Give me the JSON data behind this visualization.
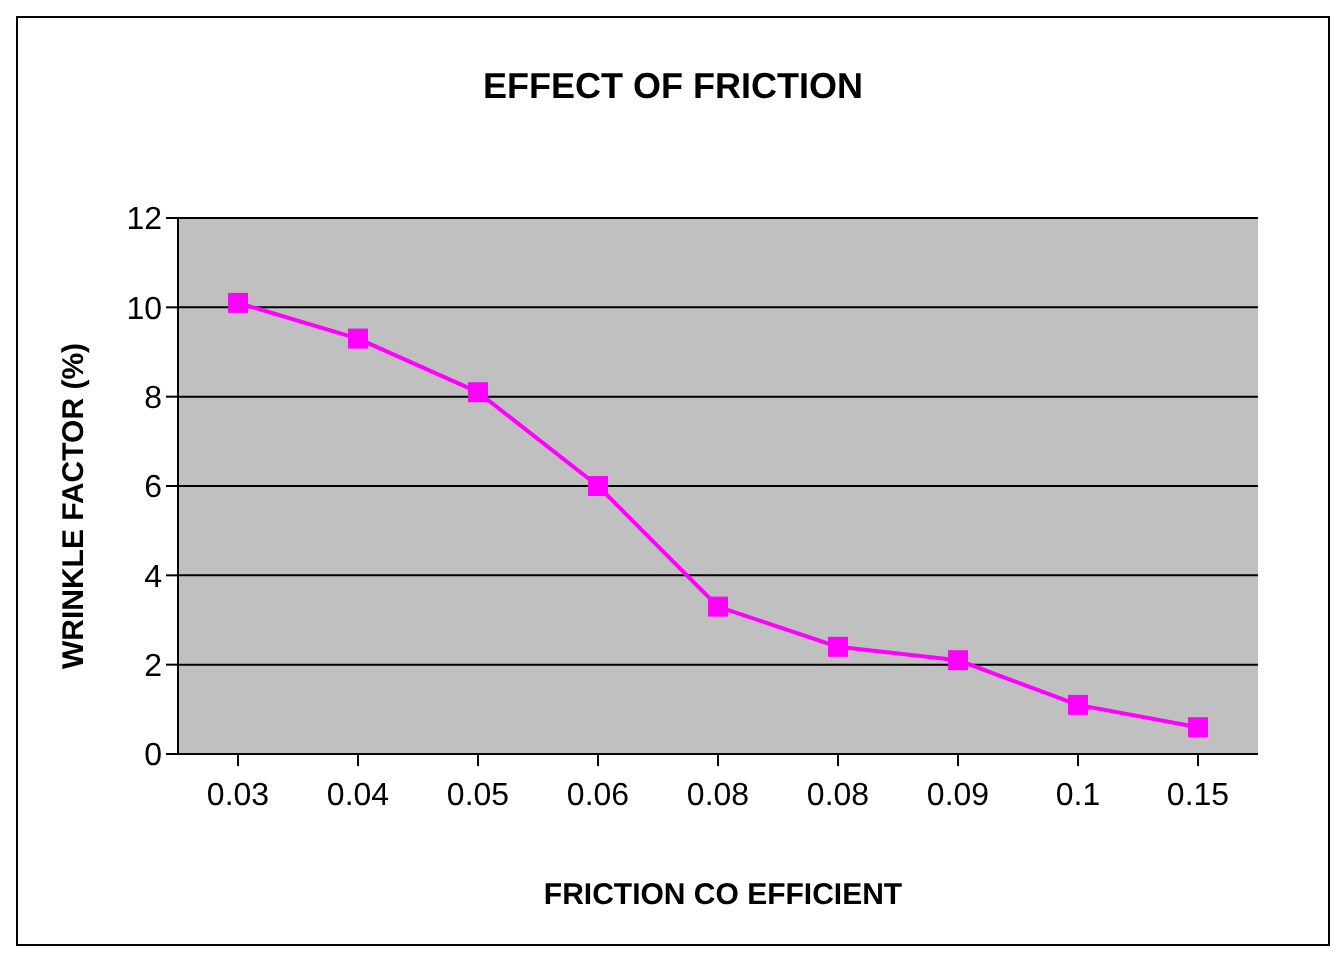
{
  "chart_data": {
    "type": "line",
    "title": "EFFECT OF FRICTION",
    "xlabel": "FRICTION CO EFFICIENT",
    "ylabel": "WRINKLE FACTOR (%)",
    "categories": [
      "0.03",
      "0.04",
      "0.05",
      "0.06",
      "0.08",
      "0.08",
      "0.09",
      "0.1",
      "0.15"
    ],
    "series": [
      {
        "color": "#ff00ff",
        "values": [
          10.1,
          9.3,
          8.1,
          6.0,
          3.3,
          2.4,
          2.1,
          1.1,
          0.6
        ]
      }
    ],
    "ylim": [
      0,
      12
    ],
    "yticks": [
      0,
      2,
      4,
      6,
      8,
      10,
      12
    ],
    "grid": "y",
    "marker": "square",
    "line_style": "solid"
  }
}
